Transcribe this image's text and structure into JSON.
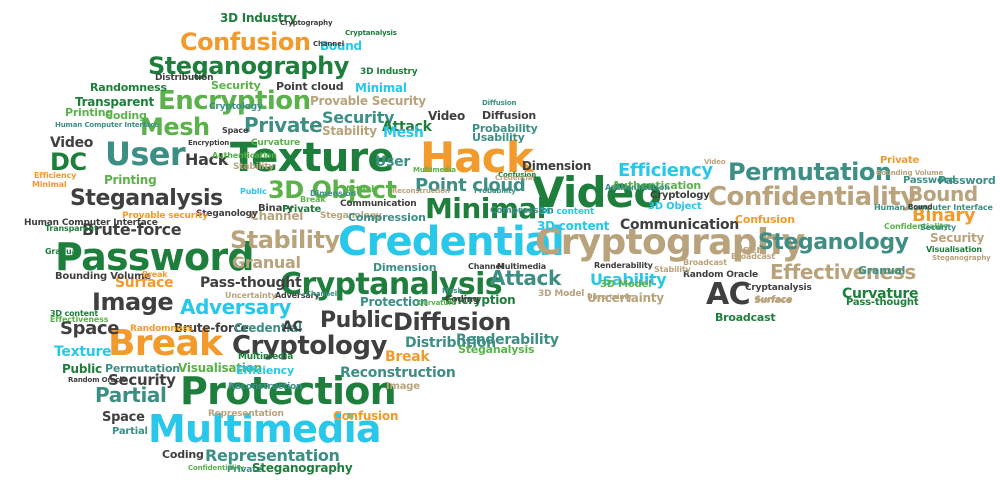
{
  "cloud": {
    "name": "key-word-cloud",
    "colors": {
      "c-dg": "#1e7e3c",
      "c-lg": "#5bb24a",
      "c-cy": "#29c7ea",
      "c-or": "#f39a2c",
      "c-tn": "#b9a37c",
      "c-dk": "#3f3f3f",
      "c-tl": "#3d8f86"
    },
    "words": [
      "Texture",
      "Credential",
      "Password",
      "Protection",
      "Multimedia",
      "Video",
      "Hack",
      "Cryptography",
      "Cryptanalysis",
      "Break",
      "Confusion",
      "Steganography",
      "Encryption",
      "User",
      "Minimal",
      "Confidentiality",
      "Permutation",
      "Steganology",
      "Effectiveness",
      "Image",
      "Stability",
      "Diffusion",
      "Cryptology",
      "Steganalysis",
      "3D Object",
      "Mesh",
      "DC",
      "AC",
      "Public",
      "Adversary",
      "Point cloud",
      "Attack",
      "Private",
      "Efficiency",
      "Partial",
      "Security",
      "Space",
      "Representation",
      "Surface",
      "Bound",
      "Binary",
      "Usability",
      "Communication",
      "Brute-force",
      "Pass-thought",
      "Distribution",
      "Reconstruction",
      "Renderability",
      "3D content",
      "Granual",
      "Curvature",
      "Broadcast",
      "Dimension",
      "Uncertainty",
      "3D Model",
      "Printing",
      "Transparent",
      "Randomness",
      "Coding",
      "Channel",
      "Visualisation",
      "Provable Security",
      "Hack",
      "Video",
      "Attack",
      "Stability",
      "Probability",
      "Diffusion",
      "Human Computer Interface",
      "3D Industry",
      "Cryptography",
      "Minimal",
      "Bound",
      "Random Oracle",
      "Authentication",
      "Security",
      "3D Industry",
      "Steganology",
      "Effectiveness",
      "Surface",
      "Public",
      "Encryption",
      "Image",
      "3D content",
      "Texture",
      "Confusion",
      "Space",
      "Partial",
      "Coding",
      "Confidentiality",
      "Private",
      "Steganography",
      "Bounding Volume",
      "Representation",
      "Multimedia",
      "Printing",
      "Transparent",
      "Granual",
      "Random Oracle",
      "Permutation",
      "Security",
      "Efficiency",
      "Reconstruction",
      "Break",
      "Protection",
      "Mesh",
      "Coding",
      "Channel",
      "Multimedia",
      "Dimension",
      "Uncertainty",
      "Adversary",
      "Brute-force",
      "Credential",
      "AC",
      "Break",
      "Steganalysis",
      "Password",
      "User",
      "Broadcast",
      "Cryptanalysis",
      "Surface",
      "Pass-thought",
      "Granual",
      "Confidentiality",
      "Security",
      "Visualisation",
      "Steganography",
      "3D Model",
      "Uncertainty",
      "Binary",
      "Human Computer Interface",
      "Broadcast",
      "Authentication",
      "3D Object",
      "Cryptology",
      "Video",
      "User",
      "Communication",
      "3D content",
      "Bound",
      "Private",
      "Password",
      "Confusion",
      "Provable security",
      "Steganology",
      "Compression",
      "Randomness",
      "Efficiency",
      "Minimal",
      "Human Computer Interface",
      "Bounding Volume",
      "Break",
      "Compression",
      "Renderability",
      "Stability",
      "Public",
      "Point cloud",
      "Diffusion",
      "Authentication",
      "Distribution",
      "Security",
      "Curvature",
      "Channel",
      "Cryptanalysis",
      "Usability",
      "Stability",
      "Cryptology",
      "Dimension",
      "Video",
      "Private",
      "Multimedia",
      "Encryption",
      "Confusion",
      "Space",
      "Attack",
      "Credential",
      "Reconstruction",
      "Probability",
      "Mesh",
      "Channel",
      "Curvature"
    ]
  }
}
